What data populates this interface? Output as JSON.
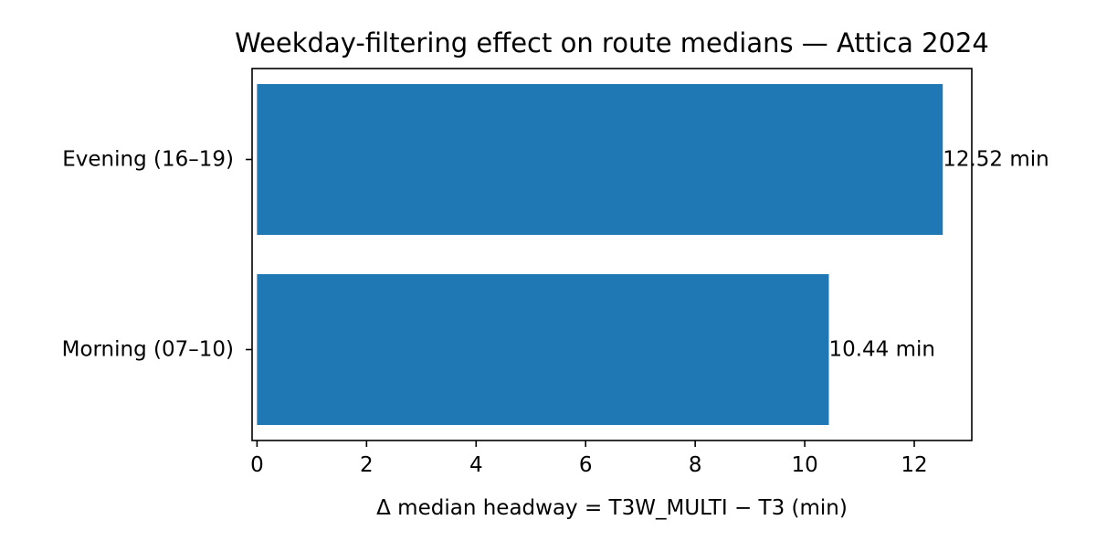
{
  "chart_data": {
    "type": "bar",
    "orientation": "horizontal",
    "title": "Weekday-filtering effect on route medians — Attica 2024",
    "xlabel": "Δ median headway = T3W_MULTI − T3 (min)",
    "ylabel": "",
    "categories": [
      "Morning (07–10)",
      "Evening (16–19)"
    ],
    "values": [
      10.44,
      12.52
    ],
    "value_labels": [
      "10.44 min",
      "12.52 min"
    ],
    "xlim": [
      -0.09,
      13.05
    ],
    "xticks": [
      0,
      2,
      4,
      6,
      8,
      10,
      12
    ],
    "xtick_labels": [
      "0",
      "2",
      "4",
      "6",
      "8",
      "10",
      "12"
    ],
    "bar_color": "#1f77b4",
    "grid": false,
    "legend": "none"
  }
}
